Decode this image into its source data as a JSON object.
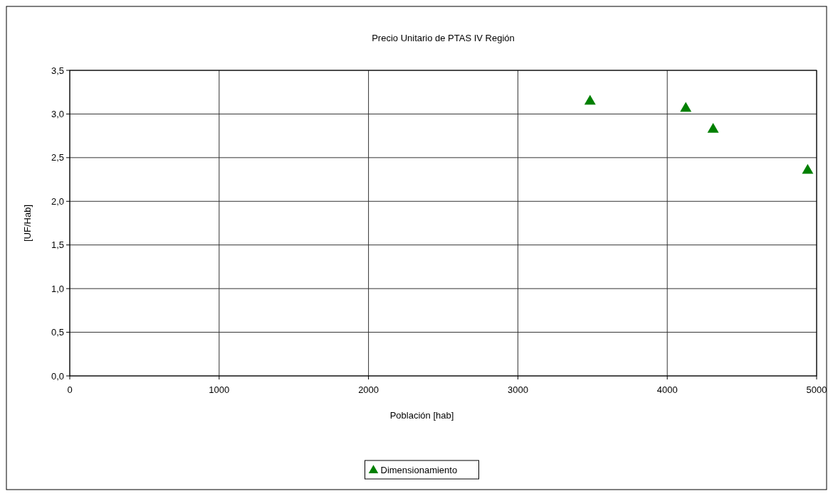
{
  "chart_data": {
    "type": "scatter",
    "title": "Precio Unitario de PTAS IV Región",
    "xlabel": "Población [hab]",
    "ylabel": "[UF/Hab]",
    "x": [
      3483,
      4124,
      4307,
      4940
    ],
    "series": [
      {
        "name": "Dimensionamiento",
        "color": "#008000",
        "values": [
          3.16,
          3.08,
          2.84,
          2.37
        ]
      }
    ],
    "xlim": [
      0,
      5000
    ],
    "xticks": [
      0,
      1000,
      2000,
      3000,
      4000,
      5000
    ],
    "ylim": [
      0,
      3.5
    ],
    "yticks": [
      {
        "value": 0,
        "label": "0,0"
      },
      {
        "value": 0.5,
        "label": "0,5"
      },
      {
        "value": 1,
        "label": "1,0"
      },
      {
        "value": 1.5,
        "label": "1,5"
      },
      {
        "value": 2,
        "label": "2,0"
      },
      {
        "value": 2.5,
        "label": "2,5"
      },
      {
        "value": 3,
        "label": "3,0"
      },
      {
        "value": 3.5,
        "label": "3,5"
      }
    ],
    "grid": true,
    "legend": "bottom",
    "marker": "triangle"
  }
}
